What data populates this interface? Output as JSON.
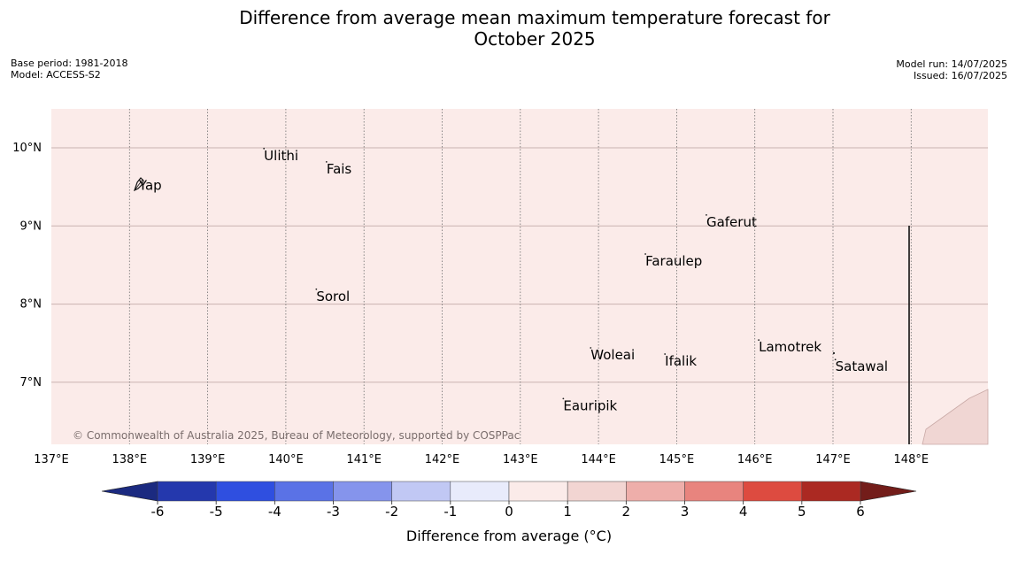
{
  "title_line1": "Difference from average mean maximum temperature forecast for",
  "title_line2": "October 2025",
  "info_left": {
    "base_period": "Base period: 1981-2018",
    "model": "Model: ACCESS-S2"
  },
  "info_right": {
    "model_run": "Model run: 14/07/2025",
    "issued": "Issued: 16/07/2025"
  },
  "copyright": "© Commonwealth of Australia 2025, Bureau of Meteorology, supported by COSPPac",
  "colors": {
    "map_background": "#fbebe9",
    "land": "#f0d6d3",
    "gridline_lat": "#c9b3b1",
    "gridline_lon": "#6e6e6e"
  },
  "lat_labels": [
    {
      "text": "10°N",
      "value": 10
    },
    {
      "text": "9°N",
      "value": 9
    },
    {
      "text": "8°N",
      "value": 8
    },
    {
      "text": "7°N",
      "value": 7
    }
  ],
  "lon_labels": [
    {
      "text": "137°E",
      "value": 137
    },
    {
      "text": "138°E",
      "value": 138
    },
    {
      "text": "139°E",
      "value": 139
    },
    {
      "text": "140°E",
      "value": 140
    },
    {
      "text": "141°E",
      "value": 141
    },
    {
      "text": "142°E",
      "value": 142
    },
    {
      "text": "143°E",
      "value": 143
    },
    {
      "text": "144°E",
      "value": 144
    },
    {
      "text": "145°E",
      "value": 145
    },
    {
      "text": "146°E",
      "value": 146
    },
    {
      "text": "147°E",
      "value": 147
    },
    {
      "text": "148°E",
      "value": 148
    }
  ],
  "places": [
    {
      "name": "Yap",
      "lon": 138.12,
      "lat": 9.52
    },
    {
      "name": "Ulithi",
      "lon": 139.72,
      "lat": 9.9
    },
    {
      "name": "Fais",
      "lon": 140.52,
      "lat": 9.73
    },
    {
      "name": "Gaferut",
      "lon": 145.38,
      "lat": 9.05
    },
    {
      "name": "Faraulep",
      "lon": 144.6,
      "lat": 8.55
    },
    {
      "name": "Sorol",
      "lon": 140.39,
      "lat": 8.1
    },
    {
      "name": "Lamotrek",
      "lon": 146.05,
      "lat": 7.45
    },
    {
      "name": "Satawal",
      "lon": 147.03,
      "lat": 7.2
    },
    {
      "name": "Woleai",
      "lon": 143.9,
      "lat": 7.35
    },
    {
      "name": "Ifalik",
      "lon": 144.85,
      "lat": 7.27
    },
    {
      "name": "Eauripik",
      "lon": 143.55,
      "lat": 6.7
    }
  ],
  "colorbar": {
    "label": "Difference from average (°C)",
    "ticks": [
      "-6",
      "-5",
      "-4",
      "-3",
      "-2",
      "-1",
      "0",
      "1",
      "2",
      "3",
      "4",
      "5",
      "6"
    ],
    "low_extend_color": "#1b2a80",
    "high_extend_color": "#731d1a",
    "bins": [
      {
        "from": -6,
        "to": -5,
        "color": "#2438ad"
      },
      {
        "from": -5,
        "to": -4,
        "color": "#2f4fe0"
      },
      {
        "from": -4,
        "to": -3,
        "color": "#5a72e6"
      },
      {
        "from": -3,
        "to": -2,
        "color": "#8594ec"
      },
      {
        "from": -2,
        "to": -1,
        "color": "#c1c8f4"
      },
      {
        "from": -1,
        "to": 0,
        "color": "#e8ebfb"
      },
      {
        "from": 0,
        "to": 1,
        "color": "#fbebe9"
      },
      {
        "from": 1,
        "to": 2,
        "color": "#f2d5d2"
      },
      {
        "from": 2,
        "to": 3,
        "color": "#eeaeaa"
      },
      {
        "from": 3,
        "to": 4,
        "color": "#e8847e"
      },
      {
        "from": 4,
        "to": 5,
        "color": "#dd4b40"
      },
      {
        "from": 5,
        "to": 6,
        "color": "#ab2922"
      }
    ]
  },
  "field": {
    "background_anomaly_c": 0.5,
    "southeast_corner_anomaly_c": 1.2
  }
}
